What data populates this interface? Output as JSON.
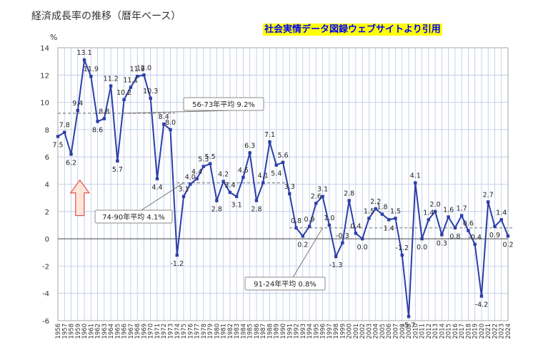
{
  "title": "経済成長率の推移（暦年ベース）",
  "source_label": "社会実情データ図録ウェブサイトより引用",
  "unit": "%",
  "colors": {
    "line": "#2b3fa8",
    "grid": "#b7c7e6",
    "avg": "#8c8c8c",
    "arrow_fill": "#fde6d8",
    "arrow_stroke": "#e05050"
  },
  "chart_data": {
    "type": "line",
    "title": "経済成長率の推移（暦年ベース）",
    "ylabel": "%",
    "ylim": [
      -6,
      14
    ],
    "yticks": [
      -6,
      -4,
      -2,
      0,
      2,
      4,
      6,
      8,
      10,
      12,
      14
    ],
    "grid": true,
    "x": [
      1956,
      1957,
      1958,
      1959,
      1960,
      1961,
      1962,
      1963,
      1964,
      1965,
      1966,
      1967,
      1968,
      1969,
      1970,
      1971,
      1972,
      1973,
      1974,
      1975,
      1976,
      1977,
      1978,
      1979,
      1980,
      1981,
      1982,
      1983,
      1984,
      1985,
      1986,
      1987,
      1988,
      1989,
      1990,
      1991,
      1992,
      1993,
      1994,
      1995,
      1996,
      1997,
      1998,
      1999,
      2000,
      2001,
      2002,
      2003,
      2004,
      2005,
      2006,
      2007,
      2008,
      2009,
      2010,
      2011,
      2012,
      2013,
      2014,
      2015,
      2016,
      2017,
      2018,
      2019,
      2020,
      2021,
      2022,
      2023,
      2024
    ],
    "values": [
      7.5,
      7.8,
      6.2,
      9.4,
      13.1,
      11.9,
      8.6,
      8.8,
      11.2,
      5.7,
      10.2,
      11.1,
      11.9,
      12.0,
      10.3,
      4.4,
      8.4,
      8.0,
      -1.2,
      3.1,
      4.0,
      4.4,
      5.3,
      5.5,
      2.8,
      4.2,
      3.4,
      3.1,
      4.5,
      6.3,
      2.8,
      4.1,
      7.1,
      5.4,
      5.6,
      3.3,
      0.8,
      0.2,
      0.9,
      2.6,
      3.1,
      1.0,
      -1.3,
      -0.3,
      2.8,
      0.4,
      0.0,
      1.5,
      2.2,
      1.8,
      1.4,
      1.5,
      -1.2,
      -5.7,
      4.1,
      0.0,
      1.4,
      2.0,
      0.3,
      1.6,
      0.8,
      1.7,
      0.6,
      -0.4,
      -4.2,
      2.7,
      0.9,
      1.4,
      0.2
    ],
    "data_labels": [
      "7.5",
      "7.8",
      "6.2",
      "9.4",
      "13.1",
      "11.9",
      "8.6",
      "8.8",
      "11.2",
      "5.7",
      "10.2",
      "11.1",
      "11.9",
      "12.0",
      "10.3",
      "4.4",
      "8.4",
      "8.0",
      "-1.2",
      "3.1",
      "4.0",
      "4.4",
      "5.3",
      "5.5",
      "2.8",
      "4.2",
      "3.4",
      "3.1",
      "4.5",
      "6.3",
      "2.8",
      "4.1",
      "7.1",
      "5.4",
      "5.6",
      "3.3",
      "0.8",
      "0.2",
      "0.9",
      "2.6",
      "3.1",
      "1.0",
      "-1.3",
      "-0.3",
      "2.8",
      "0.4",
      "0.0",
      "1.5",
      "2.2",
      "1.8",
      "1.4",
      "1.5",
      "-1.2",
      "-5.7",
      "4.1",
      "0.0",
      "1.4",
      "2.0",
      "0.3",
      "1.6",
      "0.8",
      "1.7",
      "0.6",
      "-0.4",
      "-4.2",
      "2.7",
      "0.9",
      "1.4",
      "0.2"
    ],
    "averages": [
      {
        "label": "56-73年平均 9.2%",
        "value": 9.2,
        "from": 1956,
        "to": 1973
      },
      {
        "label": "74-90年平均 4.1%",
        "value": 4.1,
        "from": 1974,
        "to": 1990
      },
      {
        "label": "91-24年平均 0.8%",
        "value": 0.8,
        "from": 1991,
        "to": 2024
      }
    ]
  }
}
